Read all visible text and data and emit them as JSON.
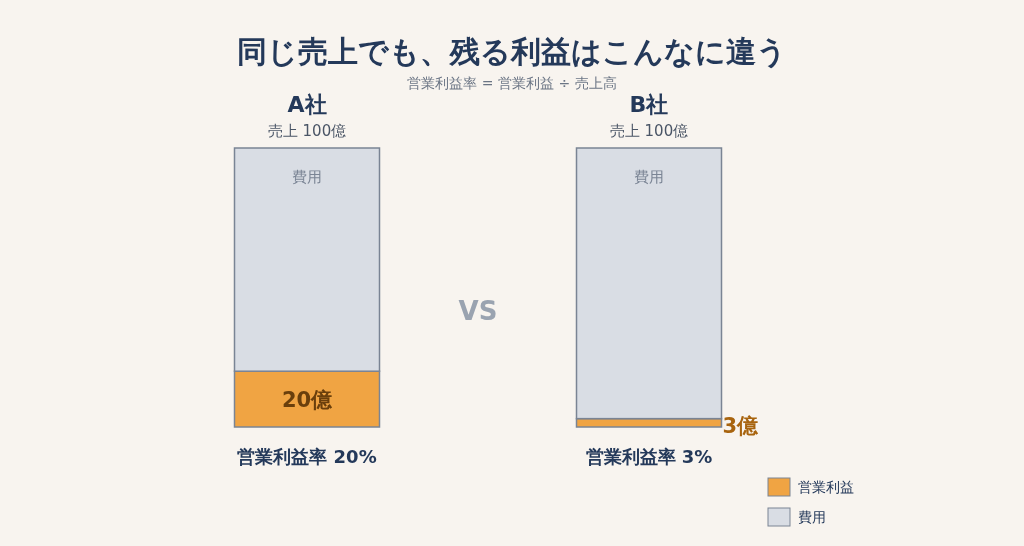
{
  "chart_data": {
    "type": "bar",
    "stacked": true,
    "title": "同じ売上でも、残る利益はこんなに違う",
    "subtitle": "営業利益率 = 営業利益 ÷ 売上高",
    "categories": [
      "A社",
      "B社"
    ],
    "series": [
      {
        "name": "営業利益",
        "color": "#f0a443",
        "values": [
          20,
          3
        ],
        "value_labels": [
          "20億",
          "3億"
        ]
      },
      {
        "name": "費用",
        "color": "#d9dde4",
        "values": [
          80,
          97
        ],
        "value_labels": [
          "費用",
          "費用"
        ]
      }
    ],
    "totals": [
      "売上 100億",
      "売上 100億"
    ],
    "annotations": [
      "営業利益率 20%",
      "営業利益率 3%",
      "VS"
    ],
    "legend": "bottom right"
  }
}
